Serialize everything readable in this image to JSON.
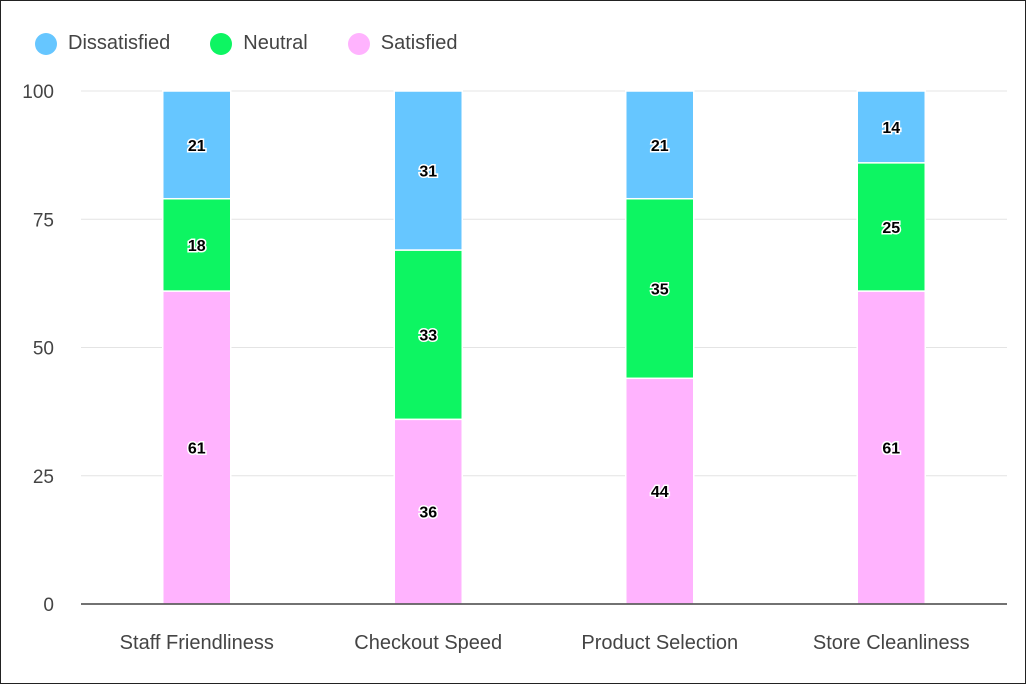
{
  "chart_data": {
    "type": "bar",
    "stacked": true,
    "categories": [
      "Staff Friendliness",
      "Checkout Speed",
      "Product Selection",
      "Store Cleanliness"
    ],
    "series": [
      {
        "name": "Satisfied",
        "color": "#ffb3fe",
        "values": [
          61,
          36,
          44,
          61
        ]
      },
      {
        "name": "Neutral",
        "color": "#0df562",
        "values": [
          18,
          33,
          35,
          25
        ]
      },
      {
        "name": "Dissatisfied",
        "color": "#66c6ff",
        "values": [
          21,
          31,
          21,
          14
        ]
      }
    ],
    "legend_order": [
      "Dissatisfied",
      "Neutral",
      "Satisfied"
    ],
    "legend_position": "top-left",
    "ylim": [
      0,
      100
    ],
    "yticks": [
      "0",
      "25",
      "50",
      "75",
      "100"
    ],
    "grid": true,
    "data_labels": true,
    "title": "",
    "xlabel": "",
    "ylabel": ""
  }
}
